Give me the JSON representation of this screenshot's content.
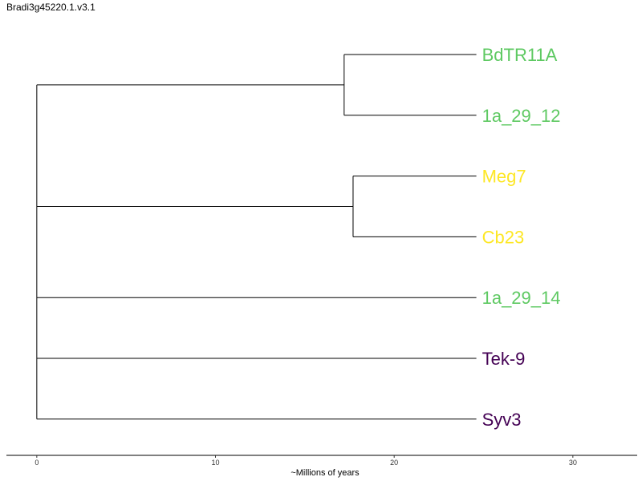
{
  "title": "Bradi3g45220.1.v3.1",
  "axis": {
    "label": "~Millions of years",
    "ticks": [
      0,
      10,
      20,
      30
    ],
    "range": [
      -1.7,
      33.6
    ]
  },
  "colors": {
    "green": "#5ec962",
    "yellow": "#fde725",
    "purple": "#440154"
  },
  "tree": {
    "tip_time": 24.6,
    "root_time": 0,
    "tips": [
      {
        "name": "BdTR11A",
        "color": "#5ec962"
      },
      {
        "name": "1a_29_12",
        "color": "#5ec962"
      },
      {
        "name": "Meg7",
        "color": "#fde725"
      },
      {
        "name": "Cb23",
        "color": "#fde725"
      },
      {
        "name": "1a_29_14",
        "color": "#5ec962"
      },
      {
        "name": "Tek-9",
        "color": "#440154"
      },
      {
        "name": "Syv3",
        "color": "#440154"
      }
    ],
    "internal_nodes": [
      {
        "id": "n1",
        "time": 17.2,
        "children": [
          "BdTR11A",
          "1a_29_12"
        ]
      },
      {
        "id": "n2",
        "time": 17.7,
        "children": [
          "Meg7",
          "Cb23"
        ]
      },
      {
        "id": "root",
        "time": 0,
        "children": [
          "n1",
          "n2",
          "1a_29_14",
          "Tek-9",
          "Syv3"
        ]
      }
    ]
  }
}
